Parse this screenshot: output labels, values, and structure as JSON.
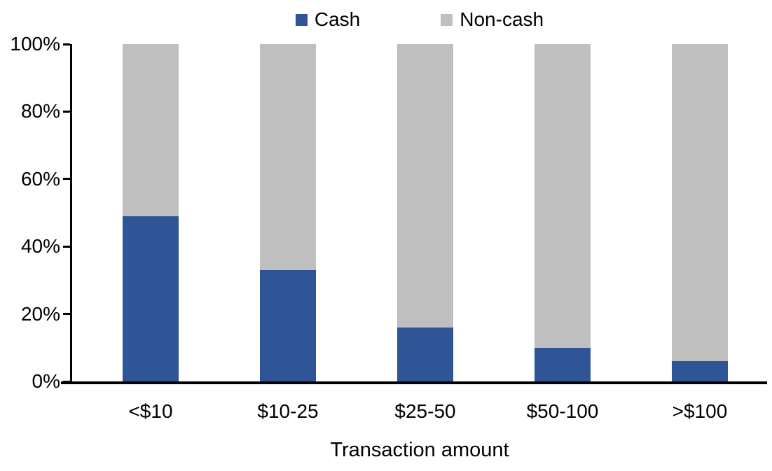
{
  "legend": {
    "items": [
      {
        "label": "Cash",
        "color": "#2F5597"
      },
      {
        "label": "Non-cash",
        "color": "#BFBFBF"
      }
    ]
  },
  "axis": {
    "y_tick_labels": [
      "0%",
      "20%",
      "40%",
      "60%",
      "80%",
      "100%"
    ],
    "x_title": "Transaction amount"
  },
  "chart_data": {
    "type": "bar",
    "subtype": "stacked-100-percent",
    "categories": [
      "<$10",
      "$10-25",
      "$25-50",
      "$50-100",
      ">$100"
    ],
    "series": [
      {
        "name": "Cash",
        "values": [
          49,
          33,
          16,
          10,
          6
        ],
        "color": "#2F5597"
      },
      {
        "name": "Non-cash",
        "values": [
          51,
          67,
          84,
          90,
          94
        ],
        "color": "#BFBFBF"
      }
    ],
    "title": "",
    "xlabel": "Transaction amount",
    "ylabel": "",
    "ylim": [
      0,
      100
    ],
    "y_tick_step": 20,
    "grid": false,
    "legend_position": "top-center"
  },
  "colors": {
    "background": "#FFFFFF",
    "axis": "#000000",
    "text": "#000000"
  }
}
